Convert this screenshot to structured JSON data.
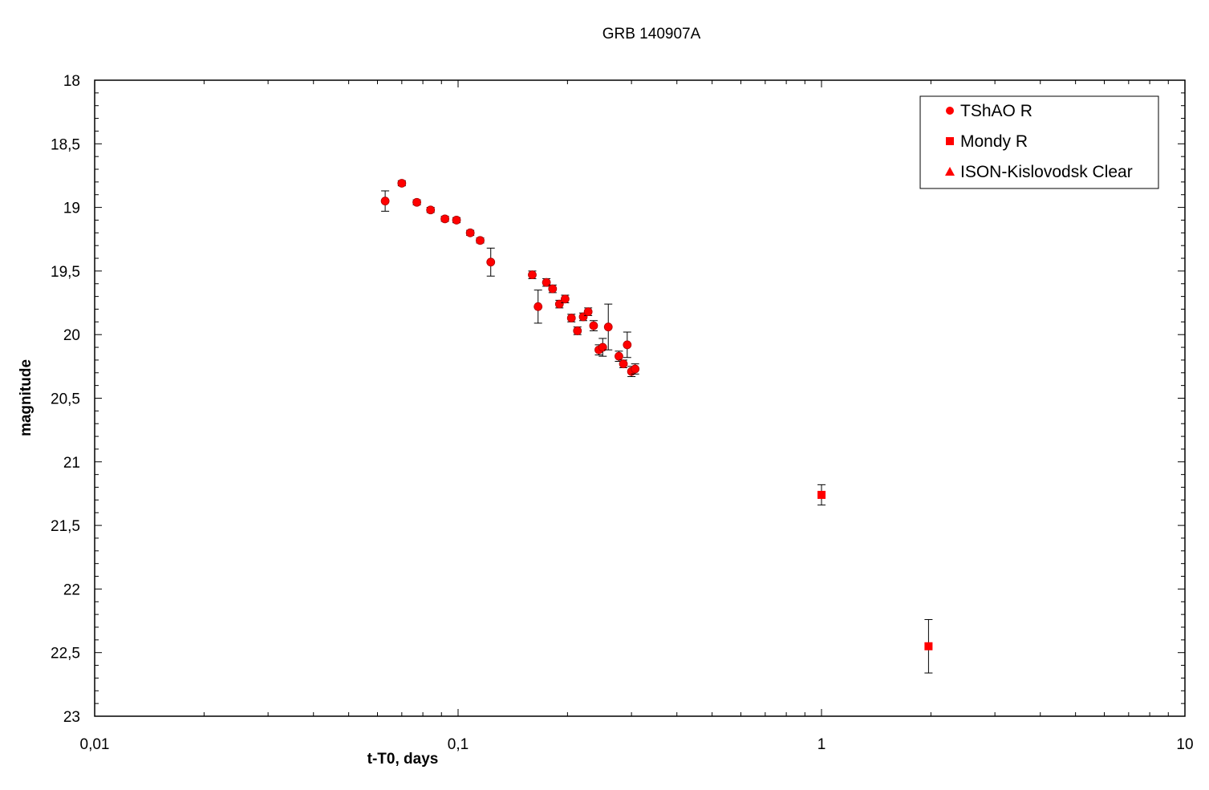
{
  "chart_data": {
    "type": "scatter",
    "title": "GRB 140907A",
    "xlabel": "t-T0, days",
    "ylabel": "magnitude",
    "x_scale": "log",
    "xlim": [
      0.01,
      10
    ],
    "ylim": [
      18,
      23
    ],
    "y_inverted": true,
    "grid": false,
    "legend_position": "top-right",
    "x_ticks": [
      {
        "value": 0.01,
        "label": "0,01"
      },
      {
        "value": 0.1,
        "label": "0,1"
      },
      {
        "value": 1,
        "label": "1"
      },
      {
        "value": 10,
        "label": "10"
      }
    ],
    "y_ticks": [
      {
        "value": 18,
        "label": "18"
      },
      {
        "value": 18.5,
        "label": "18,5"
      },
      {
        "value": 19,
        "label": "19"
      },
      {
        "value": 19.5,
        "label": "19,5"
      },
      {
        "value": 20,
        "label": "20"
      },
      {
        "value": 20.5,
        "label": "20,5"
      },
      {
        "value": 21,
        "label": "21"
      },
      {
        "value": 21.5,
        "label": "21,5"
      },
      {
        "value": 22,
        "label": "22"
      },
      {
        "value": 22.5,
        "label": "22,5"
      },
      {
        "value": 23,
        "label": "23"
      }
    ],
    "series": [
      {
        "name": "TShAO R",
        "marker": "circle",
        "color": "#ff0000",
        "points": [
          {
            "x": 0.063,
            "y": 18.95,
            "err": 0.08
          },
          {
            "x": 0.07,
            "y": 18.81,
            "err": 0.02
          },
          {
            "x": 0.077,
            "y": 18.96,
            "err": 0.02
          },
          {
            "x": 0.084,
            "y": 19.02,
            "err": 0.02
          },
          {
            "x": 0.092,
            "y": 19.09,
            "err": 0.02
          },
          {
            "x": 0.099,
            "y": 19.1,
            "err": 0.02
          },
          {
            "x": 0.108,
            "y": 19.2,
            "err": 0.02
          },
          {
            "x": 0.115,
            "y": 19.26,
            "err": 0.02
          },
          {
            "x": 0.123,
            "y": 19.43,
            "err": 0.11
          },
          {
            "x": 0.16,
            "y": 19.53,
            "err": 0.03
          },
          {
            "x": 0.166,
            "y": 19.78,
            "err": 0.13
          },
          {
            "x": 0.175,
            "y": 19.59,
            "err": 0.03
          },
          {
            "x": 0.182,
            "y": 19.64,
            "err": 0.03
          },
          {
            "x": 0.19,
            "y": 19.76,
            "err": 0.03
          },
          {
            "x": 0.197,
            "y": 19.72,
            "err": 0.03
          },
          {
            "x": 0.205,
            "y": 19.87,
            "err": 0.03
          },
          {
            "x": 0.213,
            "y": 19.97,
            "err": 0.03
          },
          {
            "x": 0.221,
            "y": 19.86,
            "err": 0.03
          },
          {
            "x": 0.228,
            "y": 19.82,
            "err": 0.03
          },
          {
            "x": 0.236,
            "y": 19.93,
            "err": 0.04
          },
          {
            "x": 0.244,
            "y": 20.12,
            "err": 0.04
          },
          {
            "x": 0.25,
            "y": 20.1,
            "err": 0.07
          },
          {
            "x": 0.259,
            "y": 19.94,
            "err": 0.18
          },
          {
            "x": 0.277,
            "y": 20.17,
            "err": 0.04
          },
          {
            "x": 0.285,
            "y": 20.23,
            "err": 0.03
          },
          {
            "x": 0.292,
            "y": 20.08,
            "err": 0.1
          },
          {
            "x": 0.3,
            "y": 20.29,
            "err": 0.04
          },
          {
            "x": 0.307,
            "y": 20.27,
            "err": 0.04
          }
        ]
      },
      {
        "name": "Mondy R",
        "marker": "square",
        "color": "#ff0000",
        "points": [
          {
            "x": 1.0,
            "y": 21.26,
            "err": 0.08
          },
          {
            "x": 1.97,
            "y": 22.45,
            "err": 0.21
          }
        ]
      },
      {
        "name": "ISON-Kislovodsk Clear",
        "marker": "triangle",
        "color": "#ff0000",
        "points": []
      }
    ]
  }
}
